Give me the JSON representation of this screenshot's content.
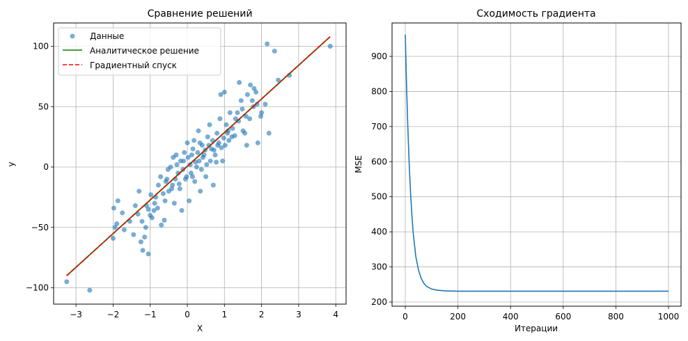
{
  "chart_data": [
    {
      "type": "scatter",
      "title": "Сравнение решений",
      "xlabel": "X",
      "ylabel": "y",
      "xlim": [
        -3.5,
        4.2
      ],
      "ylim": [
        -115,
        120
      ],
      "xticks": [
        "−3",
        "−2",
        "−1",
        "0",
        "1",
        "2",
        "3",
        "4"
      ],
      "yticks": [
        "−100",
        "−50",
        "0",
        "50",
        "100"
      ],
      "grid": true,
      "legend_position": "upper left",
      "legend": [
        "Данные",
        "Аналитическое решение",
        "Градиентный спуск"
      ],
      "series": [
        {
          "name": "Данные",
          "kind": "scatter",
          "color": "#1f77b4",
          "alpha": 0.6,
          "points": [
            [
              -3.25,
              -95
            ],
            [
              -2.63,
              -102
            ],
            [
              -2.0,
              -59
            ],
            [
              -1.95,
              -50
            ],
            [
              -1.98,
              -34
            ],
            [
              -1.87,
              -28
            ],
            [
              -1.9,
              -47
            ],
            [
              -1.7,
              -52
            ],
            [
              -1.75,
              -38
            ],
            [
              -1.55,
              -45
            ],
            [
              -1.45,
              -56
            ],
            [
              -1.4,
              -32
            ],
            [
              -1.33,
              -39
            ],
            [
              -1.25,
              -62
            ],
            [
              -1.2,
              -69
            ],
            [
              -1.15,
              -58
            ],
            [
              -1.12,
              -50
            ],
            [
              -1.05,
              -72
            ],
            [
              -1.05,
              -35
            ],
            [
              -1.0,
              -40
            ],
            [
              -0.95,
              -42
            ],
            [
              -0.9,
              -36
            ],
            [
              -0.85,
              -25
            ],
            [
              -0.8,
              -34
            ],
            [
              -0.7,
              -48
            ],
            [
              -0.62,
              -44
            ],
            [
              -0.6,
              -28
            ],
            [
              -0.55,
              -10
            ],
            [
              -0.5,
              -20
            ],
            [
              -0.45,
              0
            ],
            [
              -0.4,
              -15
            ],
            [
              -0.35,
              -30
            ],
            [
              -0.3,
              10
            ],
            [
              -0.25,
              -5
            ],
            [
              -0.2,
              -18
            ],
            [
              -0.15,
              -36
            ],
            [
              -0.1,
              5
            ],
            [
              -0.05,
              -10
            ],
            [
              0.0,
              20
            ],
            [
              0.05,
              -28
            ],
            [
              0.1,
              -5
            ],
            [
              0.12,
              10
            ],
            [
              0.15,
              15
            ],
            [
              0.2,
              -12
            ],
            [
              0.25,
              0
            ],
            [
              0.3,
              30
            ],
            [
              0.32,
              5
            ],
            [
              0.35,
              -20
            ],
            [
              0.4,
              18
            ],
            [
              0.45,
              10
            ],
            [
              0.5,
              -8
            ],
            [
              0.55,
              25
            ],
            [
              0.6,
              35
            ],
            [
              0.65,
              15
            ],
            [
              0.7,
              -15
            ],
            [
              0.75,
              10
            ],
            [
              0.8,
              28
            ],
            [
              0.85,
              20
            ],
            [
              0.88,
              40
            ],
            [
              0.9,
              60
            ],
            [
              0.95,
              5
            ],
            [
              1.0,
              62
            ],
            [
              1.05,
              35
            ],
            [
              1.1,
              30
            ],
            [
              1.15,
              45
            ],
            [
              1.2,
              25
            ],
            [
              1.3,
              40
            ],
            [
              1.35,
              45
            ],
            [
              1.4,
              70
            ],
            [
              1.45,
              55
            ],
            [
              1.5,
              30
            ],
            [
              1.55,
              28
            ],
            [
              1.6,
              18
            ],
            [
              1.62,
              60
            ],
            [
              1.7,
              68
            ],
            [
              1.75,
              55
            ],
            [
              1.8,
              65
            ],
            [
              1.85,
              62
            ],
            [
              1.9,
              20
            ],
            [
              2.0,
              45
            ],
            [
              2.1,
              52
            ],
            [
              2.15,
              102
            ],
            [
              2.2,
              28
            ],
            [
              2.35,
              96
            ],
            [
              2.45,
              72
            ],
            [
              2.75,
              76
            ],
            [
              3.85,
              100
            ],
            [
              -1.3,
              -20
            ],
            [
              -1.22,
              -45
            ],
            [
              -1.1,
              -32
            ],
            [
              -0.98,
              -23
            ],
            [
              -0.88,
              -30
            ],
            [
              -0.78,
              -15
            ],
            [
              -0.72,
              -8
            ],
            [
              -0.65,
              -22
            ],
            [
              -0.58,
              -12
            ],
            [
              -0.52,
              -2
            ],
            [
              -0.42,
              -18
            ],
            [
              -0.38,
              8
            ],
            [
              -0.32,
              -10
            ],
            [
              -0.28,
              2
            ],
            [
              -0.22,
              -14
            ],
            [
              -0.18,
              5
            ],
            [
              -0.12,
              -2
            ],
            [
              -0.08,
              12
            ],
            [
              -0.02,
              -8
            ],
            [
              0.02,
              8
            ],
            [
              0.08,
              2
            ],
            [
              0.14,
              -8
            ],
            [
              0.18,
              22
            ],
            [
              0.22,
              4
            ],
            [
              0.28,
              12
            ],
            [
              0.34,
              20
            ],
            [
              0.38,
              -2
            ],
            [
              0.42,
              8
            ],
            [
              0.48,
              14
            ],
            [
              0.52,
              2
            ],
            [
              0.58,
              18
            ],
            [
              0.62,
              5
            ],
            [
              0.68,
              22
            ],
            [
              0.72,
              14
            ],
            [
              0.78,
              4
            ],
            [
              0.82,
              18
            ],
            [
              0.92,
              16
            ],
            [
              0.98,
              24
            ],
            [
              1.02,
              18
            ],
            [
              1.08,
              28
            ],
            [
              1.12,
              22
            ],
            [
              1.22,
              32
            ],
            [
              1.28,
              26
            ],
            [
              1.38,
              38
            ],
            [
              1.48,
              48
            ],
            [
              1.58,
              42
            ],
            [
              1.68,
              40
            ],
            [
              1.78,
              50
            ],
            [
              1.88,
              52
            ],
            [
              1.98,
              42
            ]
          ]
        },
        {
          "name": "Аналитическое решение",
          "kind": "line",
          "color": "#008000",
          "x": [
            -3.25,
            3.85
          ],
          "y": [
            -90,
            108
          ]
        },
        {
          "name": "Градиентный спуск",
          "kind": "line",
          "style": "dashed",
          "color": "#ff0000",
          "x": [
            -3.25,
            3.85
          ],
          "y": [
            -90,
            108
          ]
        }
      ]
    },
    {
      "type": "line",
      "title": "Сходимость градиента",
      "xlabel": "Итерации",
      "ylabel": "MSE",
      "xlim": [
        -50,
        1050
      ],
      "ylim": [
        195,
        990
      ],
      "xticks": [
        "0",
        "200",
        "400",
        "600",
        "800",
        "1000"
      ],
      "yticks": [
        "200",
        "300",
        "400",
        "500",
        "600",
        "700",
        "800",
        "900"
      ],
      "grid": true,
      "series": [
        {
          "name": "MSE",
          "color": "#1f77b4",
          "x": [
            0,
            5,
            10,
            15,
            20,
            25,
            30,
            40,
            50,
            60,
            70,
            80,
            100,
            120,
            150,
            200,
            300,
            400,
            600,
            800,
            1000
          ],
          "y": [
            962,
            810,
            690,
            590,
            510,
            447,
            398,
            330,
            292,
            268,
            254,
            245,
            237,
            234,
            232,
            231,
            231,
            231,
            231,
            231,
            231
          ]
        }
      ]
    }
  ]
}
